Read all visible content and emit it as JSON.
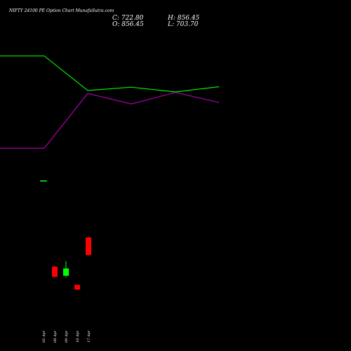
{
  "title": "NIFTY 24100 PE Option Chart MunafaSutra.com",
  "ohlc": {
    "close_label": "C: 722.80",
    "open_label": "O: 856.45",
    "high_label": "H: 856.45",
    "low_label": "L: 703.70"
  },
  "colors": {
    "background": "#000000",
    "up_candle": "#00ff00",
    "down_candle": "#ff0000",
    "green_line": "#00ee00",
    "magenta_line": "#aa00aa",
    "text": "#ffffff"
  },
  "chart_data": {
    "type": "candlestick",
    "x_tick_labels": [
      "02 Apr",
      "08 Apr",
      "09 Apr",
      "16 Apr",
      "17 Apr"
    ],
    "candles": [
      {
        "date": "02 Apr",
        "open": 860,
        "high": 860,
        "low": 860,
        "close": 860,
        "color": "green"
      },
      {
        "date": "08 Apr",
        "open": 610,
        "high": 612,
        "low": 580,
        "close": 582,
        "color": "red"
      },
      {
        "date": "09 Apr",
        "open": 585,
        "high": 625,
        "low": 580,
        "close": 605,
        "color": "green"
      },
      {
        "date": "16 Apr",
        "open": 560,
        "high": 560,
        "low": 545,
        "close": 547,
        "color": "red"
      },
      {
        "date": "17 Apr",
        "open": 690,
        "high": 692,
        "low": 640,
        "close": 642,
        "color": "red"
      }
    ],
    "indicator_lines": [
      {
        "color": "green",
        "values": [
          3220,
          3220,
          2500,
          2570,
          2470,
          2580
        ]
      },
      {
        "color": "magenta",
        "values": [
          1300,
          1300,
          2440,
          2220,
          2460,
          2250
        ]
      }
    ]
  }
}
